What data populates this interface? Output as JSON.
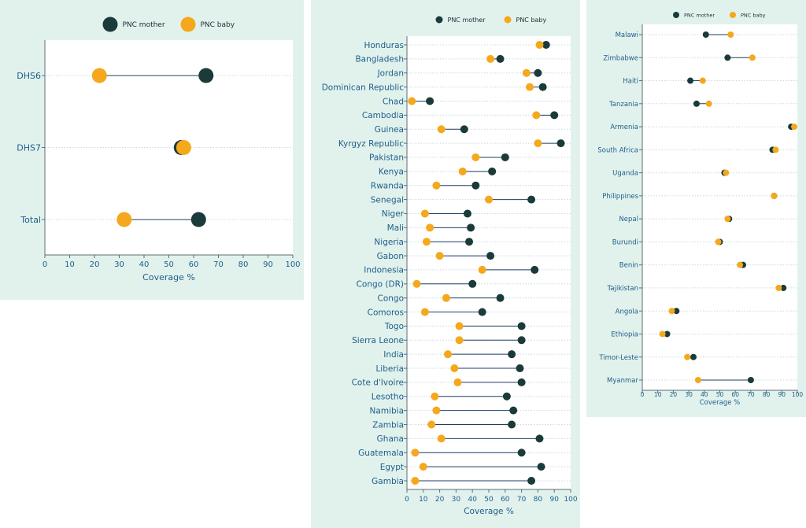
{
  "colors": {
    "mother": "#1b3a3a",
    "baby": "#f5a81c",
    "panel": "#e1f2ed"
  },
  "chart_data": [
    {
      "type": "dumbbell",
      "id": "a",
      "series": [
        {
          "name": "PNC mother",
          "values": [
            65,
            55,
            62
          ]
        },
        {
          "name": "PNC baby",
          "values": [
            22,
            56,
            32
          ]
        }
      ],
      "categories": [
        "DHS6",
        "DHS7",
        "Total"
      ],
      "xlabel": "Coverage %",
      "xlim": [
        0,
        100
      ],
      "xticks": [
        "0",
        "10",
        "20",
        "30",
        "40",
        "50",
        "60",
        "70",
        "80",
        "90",
        "100"
      ],
      "legend": "top"
    },
    {
      "type": "dumbbell",
      "id": "b",
      "series": [
        {
          "name": "PNC mother",
          "values": [
            85,
            57,
            80,
            83,
            14,
            90,
            35,
            94,
            60,
            52,
            42,
            76,
            37,
            39,
            38,
            51,
            78,
            40,
            57,
            46,
            70,
            70,
            64,
            69,
            70,
            61,
            65,
            64,
            81,
            70,
            82,
            76
          ]
        },
        {
          "name": "PNC baby",
          "values": [
            81,
            51,
            73,
            75,
            3,
            79,
            21,
            80,
            42,
            34,
            18,
            50,
            11,
            14,
            12,
            20,
            46,
            6,
            24,
            11,
            32,
            32,
            25,
            29,
            31,
            17,
            18,
            15,
            21,
            5,
            10,
            5
          ]
        }
      ],
      "categories": [
        "Honduras",
        "Bangladesh",
        "Jordan",
        "Dominican Republic",
        "Chad",
        "Cambodia",
        "Guinea",
        "Kyrgyz Republic",
        "Pakistan",
        "Kenya",
        "Rwanda",
        "Senegal",
        "Niger",
        "Mali",
        "Nigeria",
        "Gabon",
        "Indonesia",
        "Congo (DR)",
        "Congo",
        "Comoros",
        "Togo",
        "Sierra Leone",
        "India",
        "Liberia",
        "Cote d'Ivoire",
        "Lesotho",
        "Namibia",
        "Zambia",
        "Ghana",
        "Guatemala",
        "Egypt",
        "Gambia"
      ],
      "xlabel": "Coverage %",
      "xlim": [
        0,
        100
      ],
      "xticks": [
        "0",
        "10",
        "20",
        "30",
        "40",
        "50",
        "60",
        "70",
        "80",
        "90",
        "100"
      ],
      "legend": "top"
    },
    {
      "type": "dumbbell",
      "id": "c",
      "series": [
        {
          "name": "PNC mother",
          "values": [
            41,
            55,
            31,
            35,
            96,
            84,
            53,
            85,
            56,
            50,
            65,
            91,
            22,
            16,
            33,
            70
          ]
        },
        {
          "name": "PNC baby",
          "values": [
            57,
            71,
            39,
            43,
            98,
            86,
            54,
            85,
            55,
            49,
            63,
            88,
            19,
            13,
            29,
            36
          ]
        }
      ],
      "categories": [
        "Malawi",
        "Zimbabwe",
        "Haiti",
        "Tanzania",
        "Armenia",
        "South Africa",
        "Uganda",
        "Philippines",
        "Nepal",
        "Burundi",
        "Benin",
        "Tajikistan",
        "Angola",
        "Ethiopia",
        "Timor-Leste",
        "Myanmar"
      ],
      "xlabel": "Coverage %",
      "xlim": [
        0,
        100
      ],
      "xticks": [
        "0",
        "10",
        "20",
        "30",
        "40",
        "50",
        "60",
        "70",
        "80",
        "90",
        "100"
      ],
      "legend": "top"
    }
  ]
}
